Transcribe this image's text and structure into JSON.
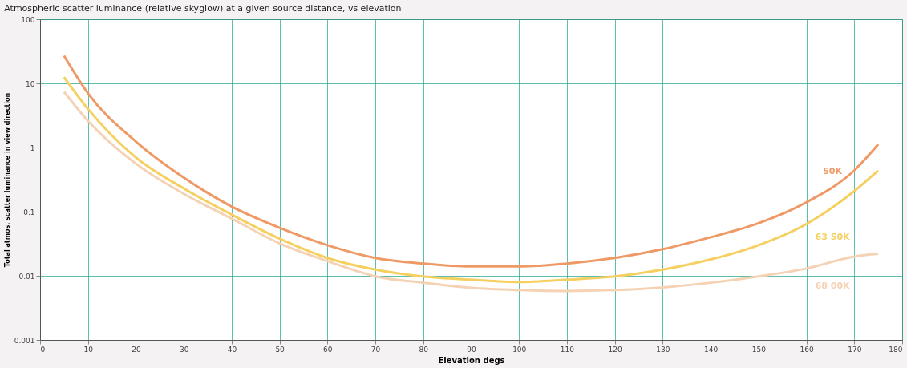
{
  "chart_data": {
    "type": "line",
    "title": "Atmospheric scatter luminance (relative skyglow) at a given source distance, vs elevation",
    "xlabel": "Elevation degs",
    "ylabel": "Total atmos. scatter luminance in view direction",
    "x": [
      5,
      10,
      20,
      30,
      40,
      50,
      60,
      70,
      80,
      90,
      100,
      110,
      120,
      130,
      140,
      150,
      160,
      170,
      175
    ],
    "series": [
      {
        "name": "50K",
        "color": "#ef9a66",
        "values": [
          27,
          7,
          1.24,
          0.34,
          0.12,
          0.056,
          0.03,
          0.019,
          0.0155,
          0.014,
          0.014,
          0.0155,
          0.019,
          0.026,
          0.04,
          0.066,
          0.14,
          0.44,
          1.12
        ]
      },
      {
        "name": "63 50K",
        "color": "#f5d060",
        "values": [
          12.5,
          4,
          0.7,
          0.23,
          0.09,
          0.038,
          0.019,
          0.0125,
          0.0098,
          0.0087,
          0.008,
          0.0087,
          0.0098,
          0.0125,
          0.018,
          0.03,
          0.064,
          0.21,
          0.44
        ]
      },
      {
        "name": "68 00K",
        "color": "#f5d2b4",
        "values": [
          7.4,
          2.6,
          0.56,
          0.19,
          0.078,
          0.032,
          0.017,
          0.0098,
          0.0078,
          0.0065,
          0.006,
          0.0058,
          0.006,
          0.0066,
          0.0078,
          0.0098,
          0.013,
          0.02,
          0.022
        ]
      }
    ],
    "xlim": [
      0,
      180
    ],
    "xticks": [
      0,
      10,
      20,
      30,
      40,
      50,
      60,
      70,
      80,
      90,
      100,
      110,
      120,
      130,
      140,
      150,
      160,
      170,
      180
    ],
    "ylim": [
      0.001,
      100
    ],
    "yticks": [
      0.001,
      0.01,
      0.1,
      1,
      10,
      100
    ],
    "log": "y",
    "grid": true,
    "marker": "none",
    "line_style": "solid"
  }
}
